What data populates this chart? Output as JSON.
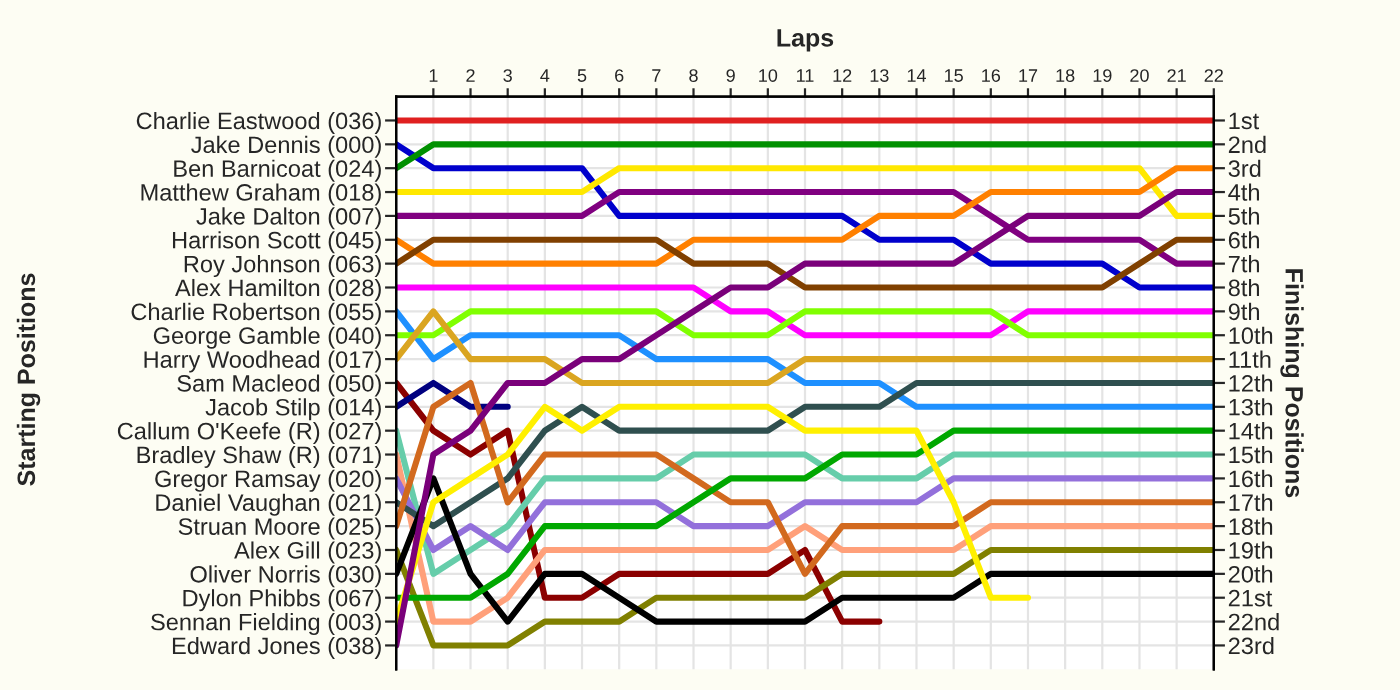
{
  "chart_data": {
    "type": "line",
    "xlabel": "Laps",
    "ylabel": "Finishing Positions",
    "annotations": [
      "Starting Positions"
    ],
    "x": [
      0,
      1,
      2,
      3,
      4,
      5,
      6,
      7,
      8,
      9,
      10,
      11,
      12,
      13,
      14,
      15,
      16,
      17,
      18,
      19,
      20,
      21,
      22
    ],
    "xlim": [
      0,
      22
    ],
    "xticks": [
      1,
      2,
      3,
      4,
      5,
      6,
      7,
      8,
      9,
      10,
      11,
      12,
      13,
      14,
      15,
      16,
      17,
      18,
      19,
      20,
      21,
      22
    ],
    "ylim": [
      24,
      0
    ],
    "yticks": [
      {
        "value": 1,
        "label": "1st"
      },
      {
        "value": 2,
        "label": "2nd"
      },
      {
        "value": 3,
        "label": "3rd"
      },
      {
        "value": 4,
        "label": "4th"
      },
      {
        "value": 5,
        "label": "5th"
      },
      {
        "value": 6,
        "label": "6th"
      },
      {
        "value": 7,
        "label": "7th"
      },
      {
        "value": 8,
        "label": "8th"
      },
      {
        "value": 9,
        "label": "9th"
      },
      {
        "value": 10,
        "label": "10th"
      },
      {
        "value": 11,
        "label": "11th"
      },
      {
        "value": 12,
        "label": "12th"
      },
      {
        "value": 13,
        "label": "13th"
      },
      {
        "value": 14,
        "label": "14th"
      },
      {
        "value": 15,
        "label": "15th"
      },
      {
        "value": 16,
        "label": "16th"
      },
      {
        "value": 17,
        "label": "17th"
      },
      {
        "value": 18,
        "label": "18th"
      },
      {
        "value": 19,
        "label": "19th"
      },
      {
        "value": 20,
        "label": "20th"
      },
      {
        "value": 21,
        "label": "21st"
      },
      {
        "value": 22,
        "label": "22nd"
      },
      {
        "value": 23,
        "label": "23rd"
      }
    ],
    "grid": true,
    "marker": "none",
    "line_style": "solid",
    "series": [
      {
        "name": "Charlie Eastwood (036)",
        "color": "#e02020",
        "values": [
          1,
          1,
          1,
          1,
          1,
          1,
          1,
          1,
          1,
          1,
          1,
          1,
          1,
          1,
          1,
          1,
          1,
          1,
          1,
          1,
          1,
          1,
          1
        ]
      },
      {
        "name": "Jake Dennis (000)",
        "color": "#0000cc",
        "values": [
          2,
          3,
          3,
          3,
          3,
          3,
          5,
          5,
          5,
          5,
          5,
          5,
          5,
          6,
          6,
          6,
          7,
          7,
          7,
          7,
          8,
          8,
          8
        ]
      },
      {
        "name": "Ben Barnicoat (024)",
        "color": "#009000",
        "values": [
          3,
          2,
          2,
          2,
          2,
          2,
          2,
          2,
          2,
          2,
          2,
          2,
          2,
          2,
          2,
          2,
          2,
          2,
          2,
          2,
          2,
          2,
          2
        ]
      },
      {
        "name": "Matthew Graham (018)",
        "color": "#ffe800",
        "values": [
          4,
          4,
          4,
          4,
          4,
          4,
          3,
          3,
          3,
          3,
          3,
          3,
          3,
          3,
          3,
          3,
          3,
          3,
          3,
          3,
          3,
          5,
          5
        ]
      },
      {
        "name": "Jake Dalton (007)",
        "color": "#800080",
        "values": [
          5,
          5,
          5,
          5,
          5,
          5,
          4,
          4,
          4,
          4,
          4,
          4,
          4,
          4,
          4,
          4,
          5,
          6,
          6,
          6,
          6,
          7,
          7
        ]
      },
      {
        "name": "Harrison Scott (045)",
        "color": "#ff8000",
        "values": [
          6,
          7,
          7,
          7,
          7,
          7,
          7,
          7,
          6,
          6,
          6,
          6,
          6,
          5,
          5,
          5,
          4,
          4,
          4,
          4,
          4,
          3,
          3
        ]
      },
      {
        "name": "Roy Johnson (063)",
        "color": "#804000",
        "values": [
          7,
          6,
          6,
          6,
          6,
          6,
          6,
          6,
          7,
          7,
          7,
          8,
          8,
          8,
          8,
          8,
          8,
          8,
          8,
          8,
          7,
          6,
          6
        ]
      },
      {
        "name": "Alex Hamilton (028)",
        "color": "#ff00ff",
        "values": [
          8,
          8,
          8,
          8,
          8,
          8,
          8,
          8,
          8,
          9,
          9,
          10,
          10,
          10,
          10,
          10,
          10,
          9,
          9,
          9,
          9,
          9,
          9
        ]
      },
      {
        "name": "Charlie Robertson (055)",
        "color": "#1e90ff",
        "values": [
          9,
          11,
          10,
          10,
          10,
          10,
          10,
          11,
          11,
          11,
          11,
          12,
          12,
          12,
          13,
          13,
          13,
          13,
          13,
          13,
          13,
          13,
          13
        ]
      },
      {
        "name": "George Gamble (040)",
        "color": "#80ff00",
        "values": [
          10,
          10,
          9,
          9,
          9,
          9,
          9,
          9,
          10,
          10,
          10,
          9,
          9,
          9,
          9,
          9,
          9,
          10,
          10,
          10,
          10,
          10,
          10
        ]
      },
      {
        "name": "Harry Woodhead (017)",
        "color": "#daa520",
        "values": [
          11,
          9,
          11,
          11,
          11,
          12,
          12,
          12,
          12,
          12,
          12,
          11,
          11,
          11,
          11,
          11,
          11,
          11,
          11,
          11,
          11,
          11,
          11
        ]
      },
      {
        "name": "Sam Macleod (050)",
        "color": "#8b0000",
        "values": [
          12,
          14,
          15,
          14,
          21,
          21,
          20,
          20,
          20,
          20,
          20,
          19,
          22,
          22,
          null,
          null,
          null,
          null,
          null,
          null,
          null,
          null,
          null
        ]
      },
      {
        "name": "Jacob Stilp (014)",
        "color": "#000080",
        "values": [
          13,
          12,
          13,
          13,
          null,
          null,
          null,
          null,
          null,
          null,
          null,
          null,
          null,
          null,
          null,
          null,
          null,
          null,
          null,
          null,
          null,
          null,
          null
        ]
      },
      {
        "name": "Callum O'Keefe (R) (027)",
        "color": "#66cdaa",
        "values": [
          14,
          20,
          19,
          18,
          16,
          16,
          16,
          16,
          15,
          15,
          15,
          15,
          16,
          16,
          16,
          15,
          15,
          15,
          15,
          15,
          15,
          15,
          15
        ]
      },
      {
        "name": "Bradley Shaw (R) (071)",
        "color": "#ffa07a",
        "values": [
          15,
          22,
          22,
          21,
          19,
          19,
          19,
          19,
          19,
          19,
          19,
          18,
          19,
          19,
          19,
          19,
          18,
          18,
          18,
          18,
          18,
          18,
          18
        ]
      },
      {
        "name": "Gregor Ramsay (020)",
        "color": "#9370db",
        "values": [
          16,
          19,
          18,
          19,
          17,
          17,
          17,
          17,
          18,
          18,
          18,
          17,
          17,
          17,
          17,
          16,
          16,
          16,
          16,
          16,
          16,
          16,
          16
        ]
      },
      {
        "name": "Daniel Vaughan (021)",
        "color": "#2f4f4f",
        "values": [
          17,
          18,
          17,
          16,
          14,
          13,
          14,
          14,
          14,
          14,
          14,
          13,
          13,
          13,
          12,
          12,
          12,
          12,
          12,
          12,
          12,
          12,
          12
        ]
      },
      {
        "name": "Struan Moore (025)",
        "color": "#d2691e",
        "values": [
          18,
          13,
          12,
          17,
          15,
          15,
          15,
          15,
          16,
          17,
          17,
          20,
          18,
          18,
          18,
          18,
          17,
          17,
          17,
          17,
          17,
          17,
          17
        ]
      },
      {
        "name": "Alex Gill (023)",
        "color": "#808000",
        "values": [
          19,
          23,
          23,
          23,
          22,
          22,
          22,
          21,
          21,
          21,
          21,
          21,
          20,
          20,
          20,
          20,
          19,
          19,
          19,
          19,
          19,
          19,
          19
        ]
      },
      {
        "name": "Oliver Norris (030)",
        "color": "#000000",
        "values": [
          20,
          16,
          20,
          22,
          20,
          20,
          21,
          22,
          22,
          22,
          22,
          22,
          21,
          21,
          21,
          21,
          20,
          20,
          20,
          20,
          20,
          20,
          20
        ]
      },
      {
        "name": "Dylon Phibbs (067)",
        "color": "#00a800",
        "values": [
          21,
          21,
          21,
          20,
          18,
          18,
          18,
          18,
          17,
          16,
          16,
          16,
          15,
          15,
          15,
          14,
          14,
          14,
          14,
          14,
          14,
          14,
          14
        ]
      },
      {
        "name": "Sennan Fielding (003)",
        "color": "#fff000",
        "values": [
          22,
          17,
          16,
          15,
          13,
          14,
          13,
          13,
          13,
          13,
          13,
          14,
          14,
          14,
          14,
          17,
          21,
          21,
          null,
          null,
          null,
          null,
          null
        ]
      },
      {
        "name": "Edward Jones (038)",
        "color": "#7a007a",
        "values": [
          23,
          15,
          14,
          12,
          12,
          11,
          11,
          10,
          9,
          8,
          8,
          7,
          7,
          7,
          7,
          7,
          6,
          5,
          5,
          5,
          5,
          4,
          4
        ]
      }
    ]
  }
}
